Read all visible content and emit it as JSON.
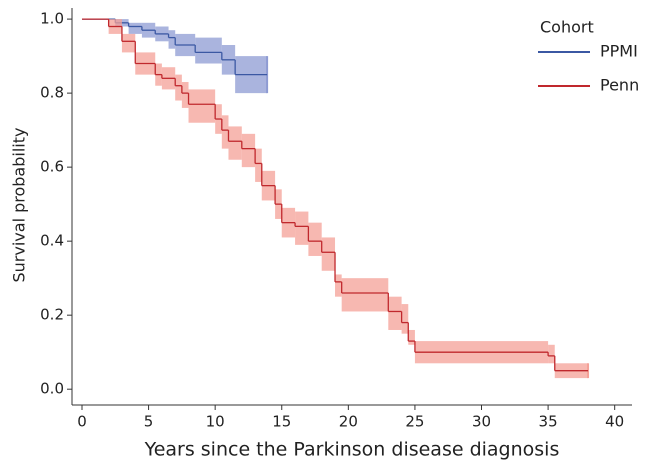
{
  "chart_data": {
    "type": "survival",
    "x_label": "Years since the Parkinson disease diagnosis",
    "y_label": "Survival probability",
    "legend_title": "Cohort",
    "legend": "upper right",
    "xlim": [
      -0.75,
      41.3
    ],
    "xticks": [
      0,
      5,
      10,
      15,
      20,
      25,
      30,
      35,
      40
    ],
    "ylim": [
      -0.04,
      1.03
    ],
    "yticks": [
      {
        "value": 0,
        "label": "0.0"
      },
      0.2,
      0.4,
      0.6,
      0.8,
      {
        "value": 1,
        "label": "1.0"
      }
    ],
    "series": [
      {
        "name": "PPMI",
        "color": "#3b58a3",
        "band_color": "#8e9bd3",
        "x": [
          0,
          2.5,
          3.5,
          4.5,
          5.5,
          6.5,
          7,
          8.5,
          10.5,
          11.5,
          13.9
        ],
        "values": [
          1.0,
          0.99,
          0.98,
          0.97,
          0.96,
          0.95,
          0.93,
          0.91,
          0.89,
          0.85,
          0.85
        ],
        "lower": [
          1.0,
          0.98,
          0.96,
          0.95,
          0.94,
          0.92,
          0.9,
          0.88,
          0.85,
          0.8,
          0.8
        ],
        "upper": [
          1.0,
          1.0,
          0.99,
          0.99,
          0.98,
          0.97,
          0.96,
          0.95,
          0.93,
          0.9,
          0.9
        ]
      },
      {
        "name": "Penn",
        "color": "#c0282d",
        "band_color": "#f4a097",
        "x": [
          0,
          2,
          3,
          4,
          5.5,
          6,
          7,
          7.5,
          8,
          10,
          10.5,
          11,
          12,
          13,
          13.5,
          14.5,
          15,
          16,
          17,
          18,
          19,
          19.5,
          23,
          24,
          24.5,
          25,
          35,
          35.5,
          38
        ],
        "values": [
          1.0,
          0.98,
          0.94,
          0.88,
          0.85,
          0.84,
          0.82,
          0.8,
          0.77,
          0.73,
          0.7,
          0.67,
          0.65,
          0.61,
          0.55,
          0.5,
          0.45,
          0.44,
          0.4,
          0.37,
          0.29,
          0.26,
          0.21,
          0.18,
          0.13,
          0.1,
          0.09,
          0.05,
          0.05
        ],
        "lower": [
          1.0,
          0.96,
          0.91,
          0.85,
          0.82,
          0.81,
          0.78,
          0.76,
          0.72,
          0.69,
          0.65,
          0.62,
          0.6,
          0.56,
          0.51,
          0.46,
          0.41,
          0.39,
          0.36,
          0.32,
          0.25,
          0.21,
          0.16,
          0.15,
          0.12,
          0.07,
          0.07,
          0.03,
          0.03
        ],
        "upper": [
          1.0,
          1.0,
          0.96,
          0.91,
          0.88,
          0.87,
          0.85,
          0.83,
          0.81,
          0.77,
          0.74,
          0.71,
          0.69,
          0.65,
          0.59,
          0.54,
          0.49,
          0.48,
          0.45,
          0.41,
          0.31,
          0.3,
          0.25,
          0.23,
          0.16,
          0.13,
          0.12,
          0.07,
          0.07
        ]
      }
    ]
  }
}
